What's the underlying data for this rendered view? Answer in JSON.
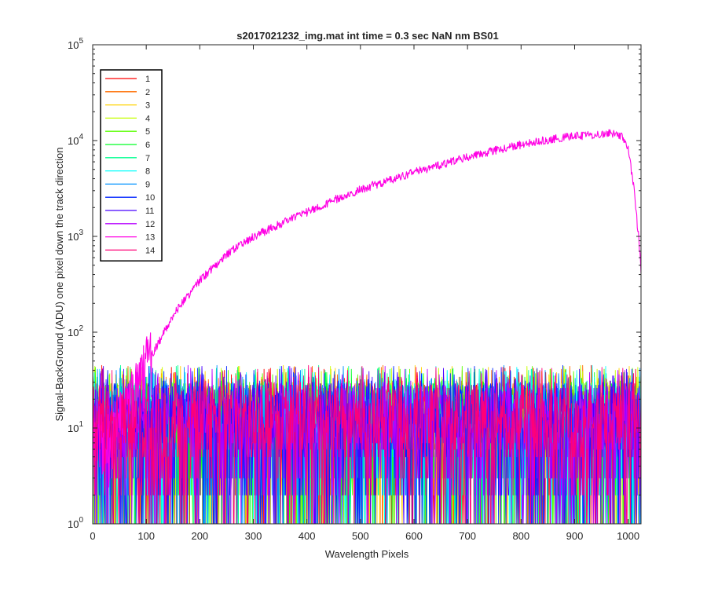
{
  "chart_data": {
    "type": "line",
    "title": "s2017021232_img.mat int time = 0.3 sec  NaN nm BS01",
    "xlabel": "Wavelength Pixels",
    "ylabel": "Signal-BackGround (ADU) one pixel down the track direction",
    "xlim": [
      0,
      1024
    ],
    "ylim": [
      1,
      100000
    ],
    "yscale": "log",
    "grid": false,
    "legend_position": "top-left",
    "x_ticks": [
      0,
      100,
      200,
      300,
      400,
      500,
      600,
      700,
      800,
      900,
      1000
    ],
    "y_ticks": [
      {
        "value": 1,
        "base": "10",
        "exp": "0"
      },
      {
        "value": 10,
        "base": "10",
        "exp": "1"
      },
      {
        "value": 100,
        "base": "10",
        "exp": "2"
      },
      {
        "value": 1000,
        "base": "10",
        "exp": "3"
      },
      {
        "value": 10000,
        "base": "10",
        "exp": "4"
      },
      {
        "value": 100000,
        "base": "10",
        "exp": "5"
      }
    ],
    "noise_band": {
      "description_values": "series 1-12 and 14 fluctuate between about 1 and 45 ADU across all pixels",
      "min": 1,
      "max": 45,
      "typical": 12
    },
    "series": [
      {
        "name": "1",
        "color": "#ff0000",
        "kind": "noise"
      },
      {
        "name": "2",
        "color": "#ff6d00",
        "kind": "noise"
      },
      {
        "name": "3",
        "color": "#ffd200",
        "kind": "noise"
      },
      {
        "name": "4",
        "color": "#c6ff00",
        "kind": "noise"
      },
      {
        "name": "5",
        "color": "#5aff00",
        "kind": "noise"
      },
      {
        "name": "6",
        "color": "#00ff24",
        "kind": "noise"
      },
      {
        "name": "7",
        "color": "#00ff91",
        "kind": "noise"
      },
      {
        "name": "8",
        "color": "#00fffc",
        "kind": "noise"
      },
      {
        "name": "9",
        "color": "#0091ff",
        "kind": "noise"
      },
      {
        "name": "10",
        "color": "#0024ff",
        "kind": "noise"
      },
      {
        "name": "11",
        "color": "#4800ff",
        "kind": "noise"
      },
      {
        "name": "12",
        "color": "#b600ff",
        "kind": "noise"
      },
      {
        "name": "13",
        "color": "#ff00e4",
        "kind": "signal",
        "points": [
          [
            0,
            8
          ],
          [
            50,
            12
          ],
          [
            100,
            45
          ],
          [
            150,
            150
          ],
          [
            200,
            350
          ],
          [
            250,
            650
          ],
          [
            300,
            1000
          ],
          [
            350,
            1350
          ],
          [
            400,
            1800
          ],
          [
            450,
            2400
          ],
          [
            500,
            3100
          ],
          [
            550,
            3800
          ],
          [
            600,
            4700
          ],
          [
            650,
            5600
          ],
          [
            700,
            6700
          ],
          [
            750,
            7900
          ],
          [
            800,
            9100
          ],
          [
            850,
            10200
          ],
          [
            900,
            11200
          ],
          [
            950,
            11500
          ],
          [
            970,
            12000
          ],
          [
            990,
            11000
          ],
          [
            1000,
            8000
          ],
          [
            1010,
            3500
          ],
          [
            1020,
            900
          ],
          [
            1024,
            450
          ]
        ]
      },
      {
        "name": "14",
        "color": "#ff0077",
        "kind": "noise"
      }
    ]
  }
}
